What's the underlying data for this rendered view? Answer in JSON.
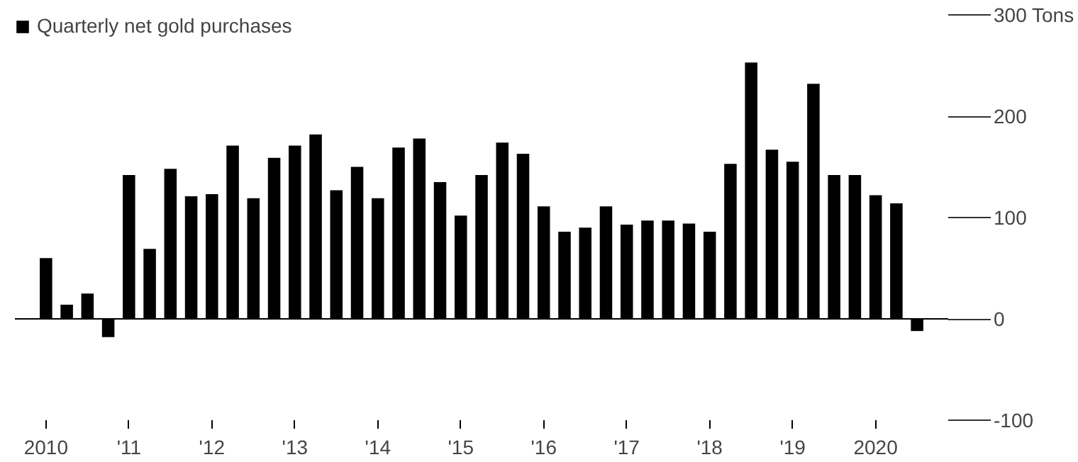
{
  "chart_data": {
    "type": "bar",
    "categories": [
      "2010",
      null,
      null,
      null,
      "'11",
      null,
      null,
      null,
      "'12",
      null,
      null,
      null,
      "'13",
      null,
      null,
      null,
      "'14",
      null,
      null,
      null,
      "'15",
      null,
      null,
      null,
      "'16",
      null,
      null,
      null,
      "'17",
      null,
      null,
      null,
      "'18",
      null,
      null,
      null,
      "'19",
      null,
      null,
      null,
      "2020",
      null,
      null
    ],
    "series": [
      {
        "name": "Quarterly net gold purchases",
        "color": "#000000",
        "values": [
          60,
          14,
          25,
          -18,
          142,
          69,
          148,
          121,
          123,
          171,
          119,
          159,
          171,
          182,
          127,
          150,
          119,
          169,
          178,
          135,
          102,
          142,
          174,
          163,
          111,
          86,
          90,
          111,
          93,
          97,
          97,
          94,
          86,
          153,
          253,
          167,
          155,
          232,
          142,
          142,
          122,
          114,
          -12
        ]
      }
    ],
    "ylim": [
      -100,
      300
    ],
    "yticks": [
      -100,
      0,
      100,
      200,
      {
        "value": 300,
        "label": "300 Tons"
      }
    ],
    "grid": "y",
    "legend": "top left"
  }
}
